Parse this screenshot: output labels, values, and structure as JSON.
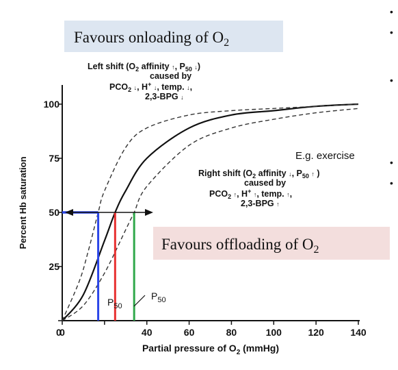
{
  "chart_data": {
    "type": "line",
    "xlabel": "Partial pressure of O",
    "xlabel_sub": "2",
    "xlabel_unit": " (mmHg)",
    "ylabel": "Percent Hb saturation",
    "xlim": [
      0,
      140
    ],
    "ylim": [
      0,
      100
    ],
    "x_ticks": [
      0,
      20,
      40,
      60,
      80,
      100,
      120,
      140
    ],
    "x_tick_labels": [
      "0",
      "",
      "40",
      "60",
      "80",
      "100",
      "120",
      "140"
    ],
    "y_ticks": [
      0,
      25,
      50,
      75,
      100
    ],
    "y_tick_labels": [
      "",
      "25",
      "50",
      "75",
      "100"
    ],
    "grid": false,
    "series": [
      {
        "style": "solid",
        "color": "#111111",
        "p50": 25,
        "x": [
          0,
          10,
          20,
          25,
          30,
          40,
          60,
          80,
          100,
          120,
          140
        ],
        "y": [
          0,
          12,
          37,
          50,
          60,
          75,
          89,
          95,
          97,
          99,
          100
        ]
      },
      {
        "style": "dashed",
        "color": "#333333",
        "p50": 17,
        "x": [
          0,
          8,
          12,
          17,
          20,
          30,
          40,
          60,
          80,
          100,
          120,
          140
        ],
        "y": [
          0,
          18,
          31,
          50,
          60,
          80,
          89,
          95,
          97,
          98,
          99,
          100
        ]
      },
      {
        "style": "dashed",
        "color": "#333333",
        "p50": 34,
        "x": [
          0,
          10,
          20,
          30,
          34,
          40,
          60,
          80,
          100,
          120,
          140
        ],
        "y": [
          0,
          7,
          22,
          42,
          50,
          62,
          81,
          89,
          93,
          96,
          98
        ]
      }
    ],
    "markers": {
      "horizontal_y": 50,
      "horizontal_x": [
        0,
        43
      ],
      "arrow_color": "#111111",
      "horizontal_color": "#2b46e8",
      "verticals": [
        {
          "x": 17,
          "color": "#2b46e8"
        },
        {
          "x": 25,
          "color": "#e83030"
        },
        {
          "x": 34,
          "color": "#2fa84a"
        }
      ]
    },
    "annotations": {
      "left_shift": {
        "l1": "Left shift (O",
        "l1_sub": "2",
        "l1_mid": " affinity ",
        "l1_a1": "↑",
        "l1_end": ", P",
        "l1_sub2": "50",
        "l1_a2": "↓",
        "l1_close": ")",
        "l2": "caused by",
        "l3": "PCO",
        "l3_sub": "2",
        "l3_a1": "↓",
        "l3_mid": ", H",
        "l3_sup": "+",
        "l3_a2": "↓",
        "l3_end": ", temp. ",
        "l3_a3": "↓",
        "l3_tail": ",",
        "l4": "2,3-BPG ",
        "l4_a": "↓"
      },
      "right_shift": {
        "l1": "Right shift (O",
        "l1_sub": "2",
        "l1_mid": " affinity ",
        "l1_a1": "↓",
        "l1_end": ", P",
        "l1_sub2": "50",
        "l1_a2": "↑",
        "l1_close": " )",
        "l2": "caused by",
        "l3": "PCO",
        "l3_sub": "2",
        "l3_a1": "↑",
        "l3_mid": ", H",
        "l3_sup": "+",
        "l3_a2": "↑",
        "l3_end": ", temp. ",
        "l3_a3": "↑",
        "l3_tail": ",",
        "l4": "2,3-BPG ",
        "l4_a": "↑"
      },
      "example": "E.g. exercise",
      "p50_label": "P",
      "p50_sub": "50"
    }
  },
  "callouts": {
    "onloading": {
      "text": "Favours onloading of O",
      "sub": "2",
      "bg": "#dde6f1"
    },
    "offloading": {
      "text": "Favours offloading of O",
      "sub": "2",
      "bg": "#f3dedd"
    }
  },
  "side_bullets": {
    "glyph": "•",
    "count": 5
  }
}
